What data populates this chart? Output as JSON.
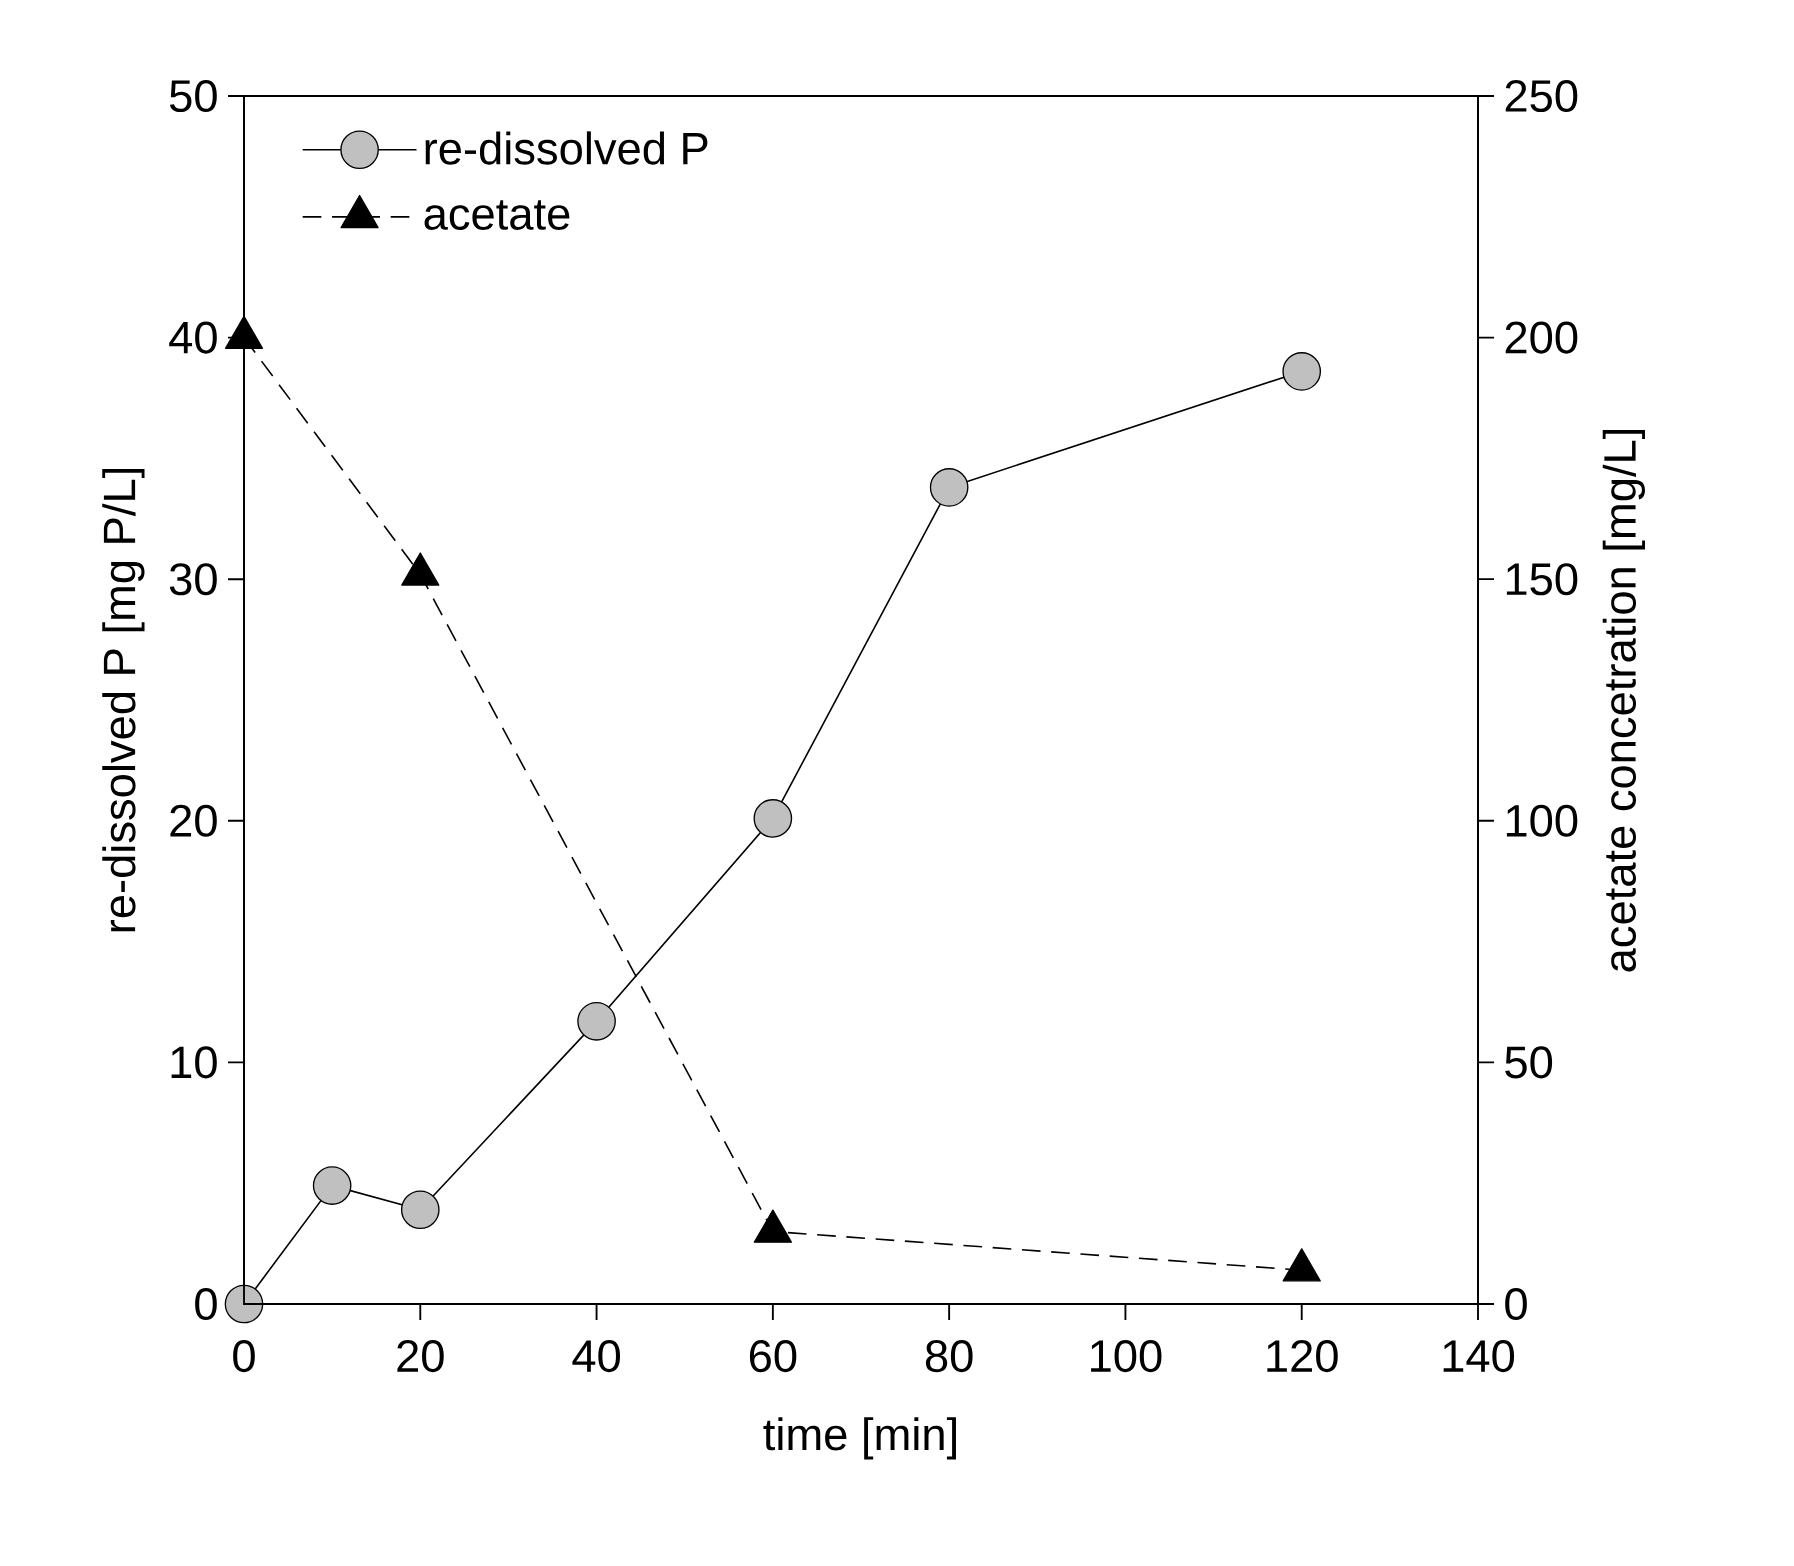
{
  "chart_data": {
    "type": "line",
    "xlabel": "time [min]",
    "ylabel": "re-dissolved P [mg P/L]",
    "y2label": "acetate concetration [mg/L]",
    "xlim": [
      0,
      140
    ],
    "xticks": [
      0,
      20,
      40,
      60,
      80,
      100,
      120,
      140
    ],
    "ylim": [
      0,
      50
    ],
    "yticks": [
      0,
      10,
      20,
      30,
      40,
      50
    ],
    "y2lim": [
      0,
      250
    ],
    "y2ticks": [
      0,
      50,
      100,
      150,
      200,
      250
    ],
    "legend": "top left",
    "grid": false,
    "series": [
      {
        "name": "re-dissolved P",
        "color": "#c0c0c0",
        "marker": "circle",
        "line_style": "solid",
        "x": [
          0,
          10,
          20,
          40,
          60,
          80,
          120
        ],
        "values": [
          0,
          4.9,
          3.9,
          11.7,
          20.1,
          33.8,
          38.6
        ]
      },
      {
        "name": "acetate",
        "color": "#000000",
        "marker": "triangle",
        "line_style": "dashed",
        "axis": "y2",
        "x": [
          0,
          20,
          60,
          120
        ],
        "values": [
          200,
          151,
          15,
          7
        ]
      }
    ]
  }
}
